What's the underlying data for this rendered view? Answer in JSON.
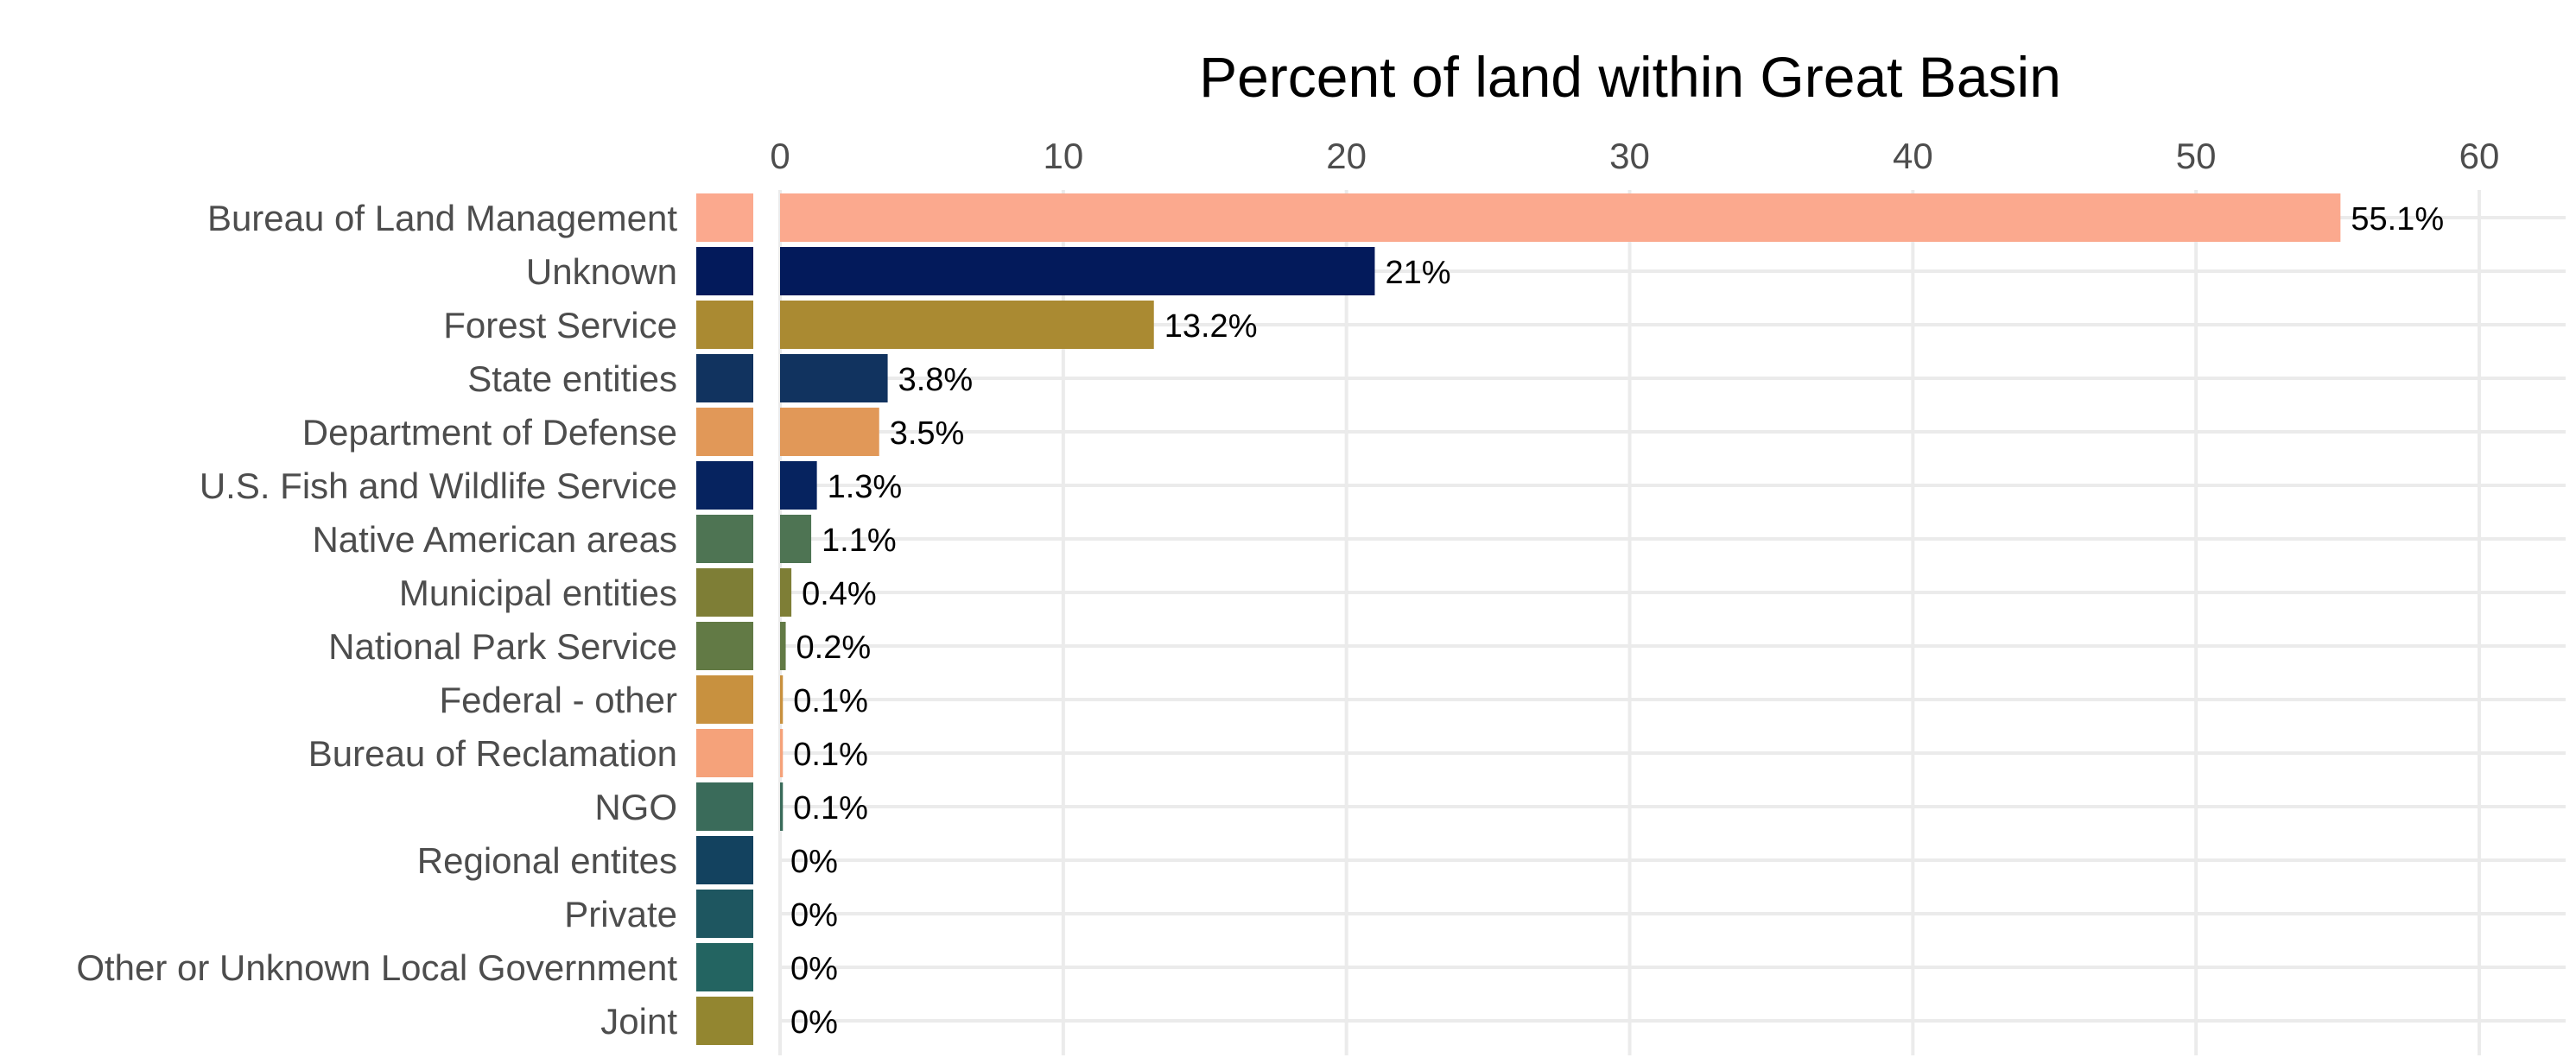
{
  "chart_data": {
    "type": "bar",
    "orientation": "horizontal",
    "title": "Percent of land within Great Basin",
    "xlabel": "",
    "ylabel": "",
    "xlim": [
      0,
      60
    ],
    "x_ticks": [
      "0",
      "10",
      "20",
      "30",
      "40",
      "50",
      "60"
    ],
    "x_axis_position": "top",
    "grid": true,
    "legend": "none",
    "categories": [
      "Bureau of Land Management",
      "Unknown",
      "Forest Service",
      "State entities",
      "Department of Defense",
      "U.S. Fish and Wildlife Service",
      "Native American areas",
      "Municipal entities",
      "National Park Service",
      "Federal - other",
      "Bureau of Reclamation",
      "NGO",
      "Regional entites",
      "Private",
      "Other or Unknown Local Government",
      "Joint"
    ],
    "values": [
      55.1,
      21,
      13.2,
      3.8,
      3.5,
      1.3,
      1.1,
      0.4,
      0.2,
      0.1,
      0.1,
      0.1,
      0,
      0,
      0,
      0
    ],
    "value_labels": [
      "55.1%",
      "21%",
      "13.2%",
      "3.8%",
      "3.5%",
      "1.3%",
      "1.1%",
      "0.4%",
      "0.2%",
      "0.1%",
      "0.1%",
      "0.1%",
      "0%",
      "0%",
      "0%",
      "0%"
    ],
    "colors": [
      "#FBA98E",
      "#031A5B",
      "#AA8A32",
      "#11335F",
      "#E19858",
      "#06235F",
      "#4E7453",
      "#7E7E36",
      "#627A45",
      "#C8913F",
      "#F5A27A",
      "#3A6B5A",
      "#13425F",
      "#1E5660",
      "#236461",
      "#938630"
    ]
  }
}
